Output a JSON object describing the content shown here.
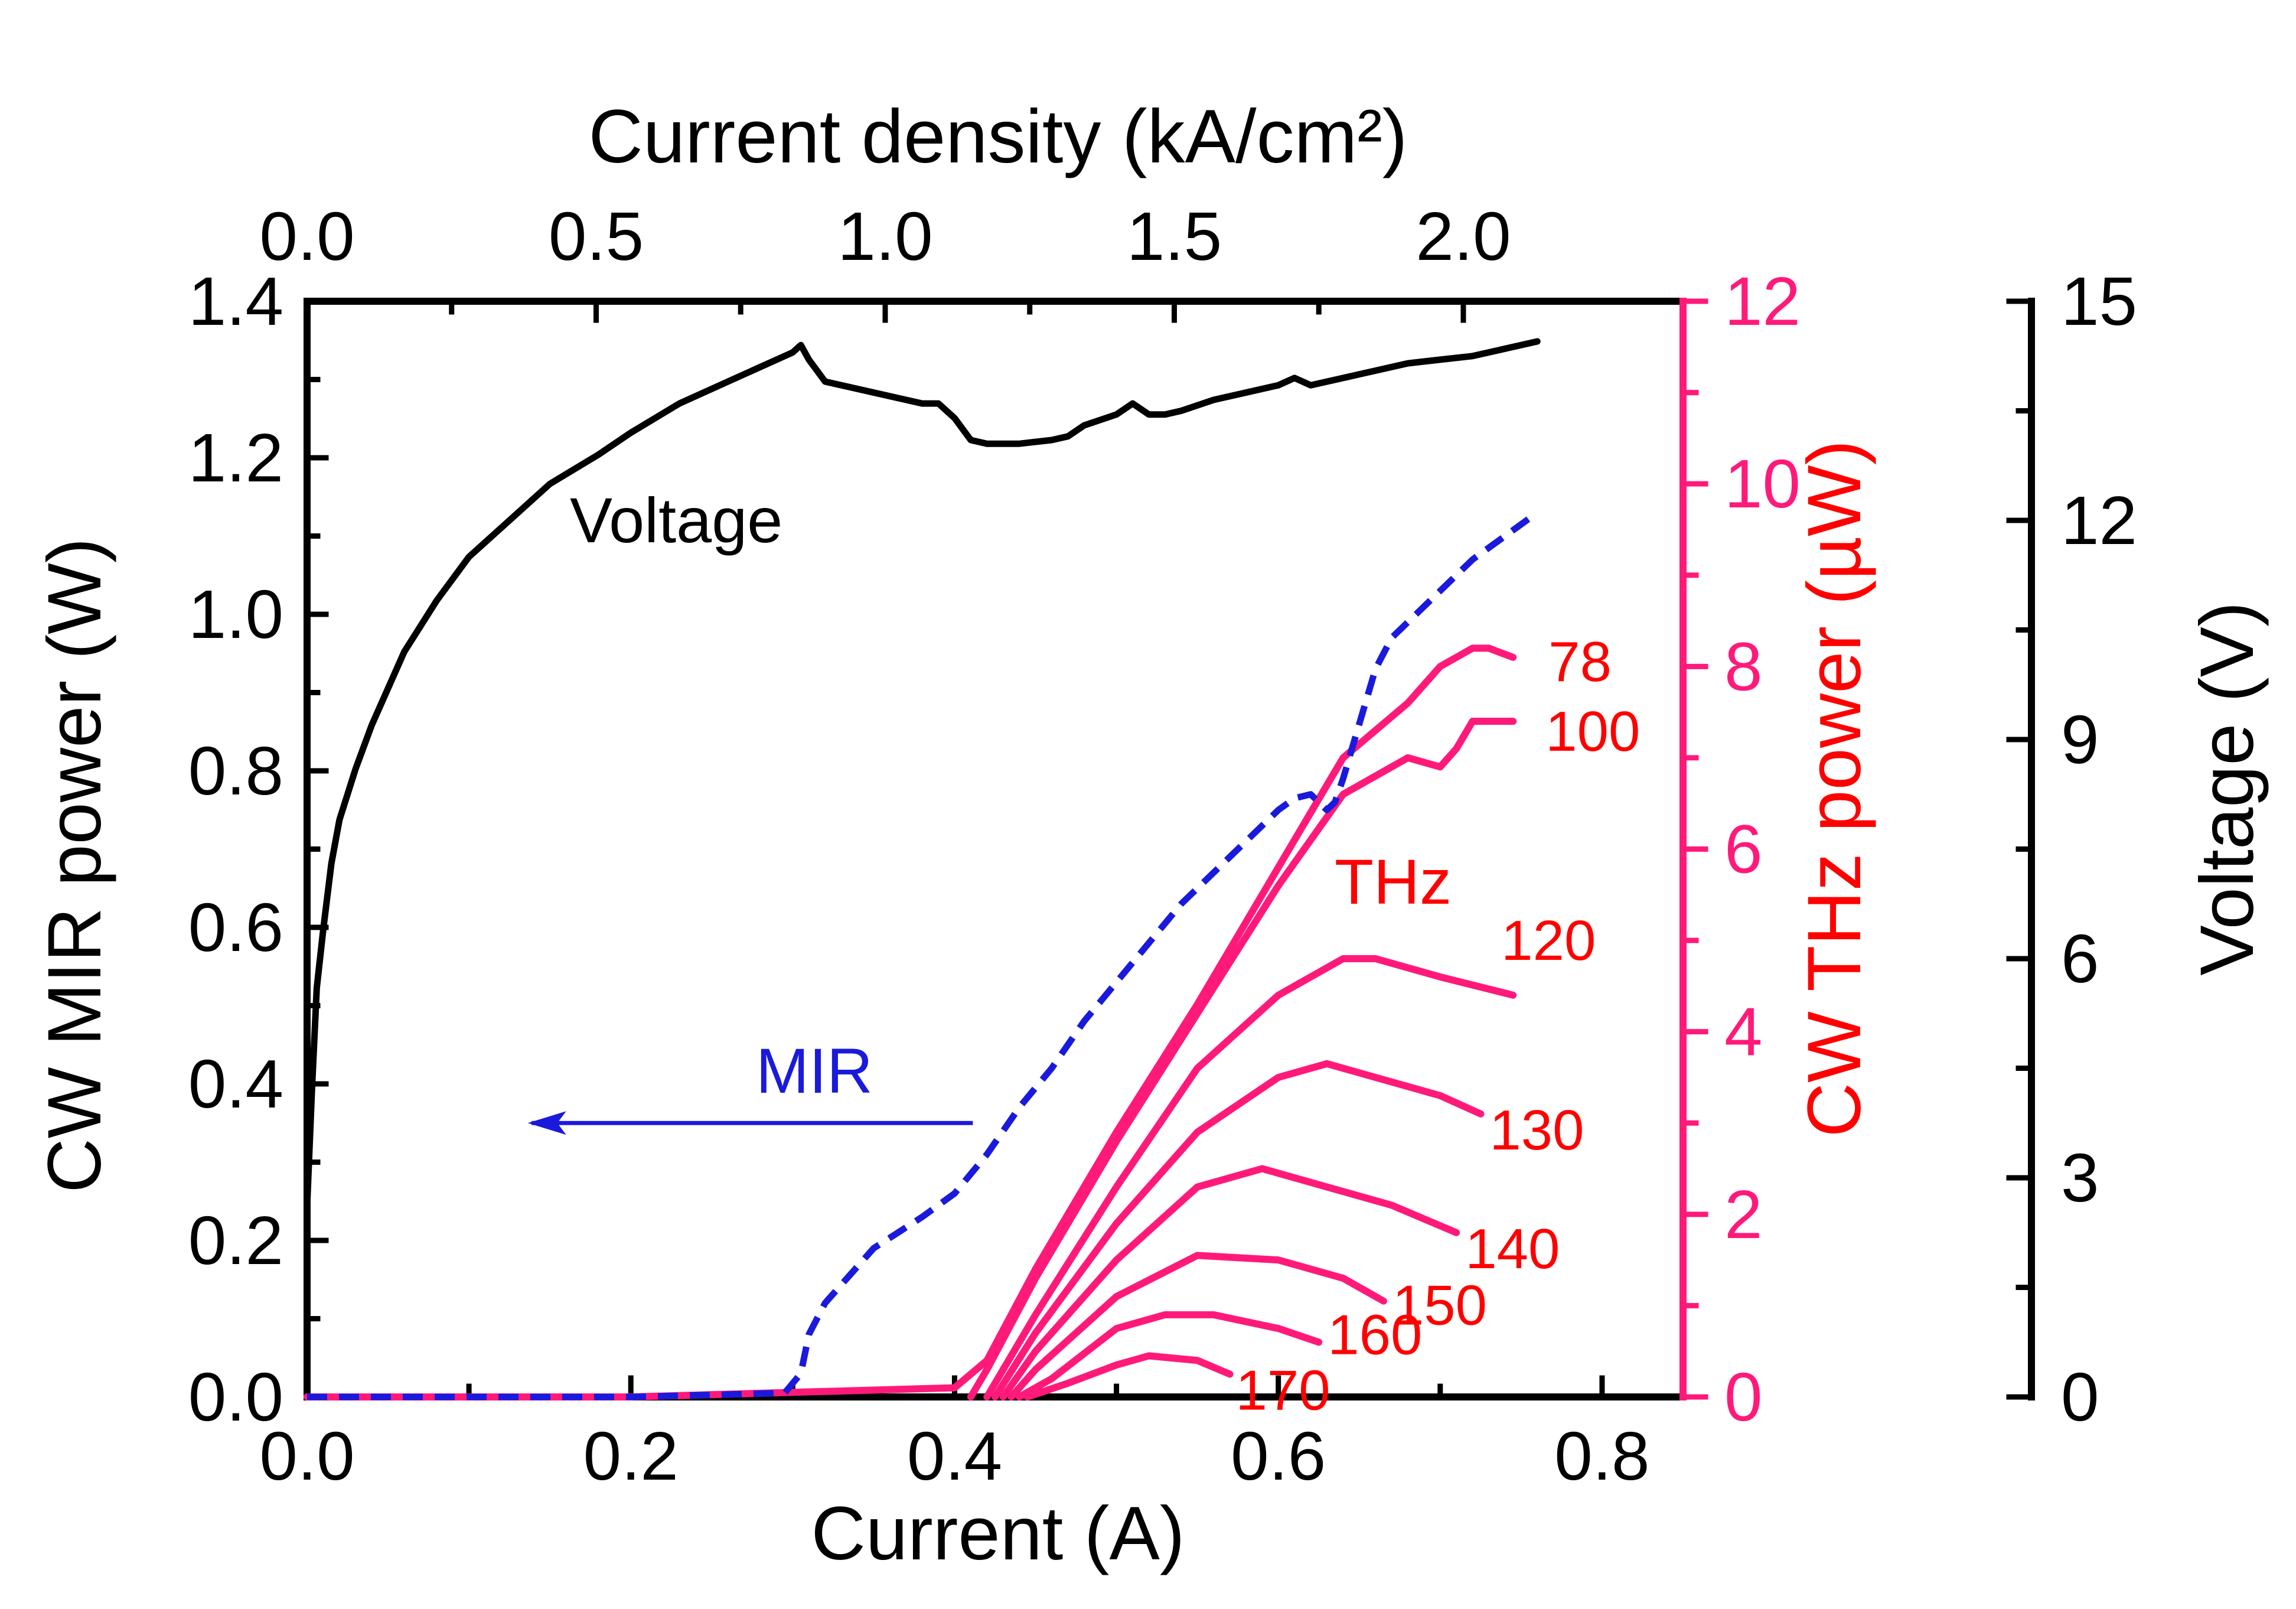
{
  "chart_data": {
    "type": "line",
    "title": "",
    "xlabel": "Current (A)",
    "xlabel_top": "Current density (kA/cm²)",
    "ylabel_left": "CW MIR power (W)",
    "ylabel_right": "CW THz power (µW)",
    "ylabel_far_right": "Voltage (V)",
    "xlim": [
      0.0,
      0.85
    ],
    "ylim_left": [
      0.0,
      1.4
    ],
    "ylim_right": [
      0,
      12
    ],
    "ylim_far_right": [
      0,
      15
    ],
    "x_ticks": [
      "0.0",
      "0.2",
      "0.4",
      "0.6",
      "0.8"
    ],
    "x_top_ticks": [
      "0.0",
      "0.5",
      "1.0",
      "1.5",
      "2.0"
    ],
    "x_top_tick_values": [
      0.0,
      0.5,
      1.0,
      1.5,
      2.0
    ],
    "current_density_per_amp": 2.8,
    "y_left_ticks": [
      "0.0",
      "0.2",
      "0.4",
      "0.6",
      "0.8",
      "1.0",
      "1.2",
      "1.4"
    ],
    "y_right_ticks": [
      "0",
      "2",
      "4",
      "6",
      "8",
      "10",
      "12"
    ],
    "y_far_right_ticks": [
      "0",
      "3",
      "6",
      "9",
      "12",
      "15"
    ],
    "colors": {
      "voltage": "#000000",
      "mir": "#1a1adc",
      "thz": "#ff1a7a",
      "thz_label": "#ff0000",
      "right_axis": "#ff1a7a"
    },
    "annotations": {
      "voltage": "Voltage",
      "mir": "MIR",
      "thz": "THz"
    },
    "voltage_series": {
      "name": "Voltage",
      "axis": "far_right",
      "x": [
        0.0,
        0.003,
        0.006,
        0.01,
        0.015,
        0.02,
        0.03,
        0.04,
        0.06,
        0.08,
        0.1,
        0.12,
        0.15,
        0.18,
        0.2,
        0.23,
        0.26,
        0.28,
        0.3,
        0.305,
        0.31,
        0.32,
        0.34,
        0.36,
        0.38,
        0.39,
        0.4,
        0.41,
        0.42,
        0.44,
        0.46,
        0.47,
        0.48,
        0.5,
        0.51,
        0.52,
        0.53,
        0.54,
        0.56,
        0.58,
        0.6,
        0.61,
        0.62,
        0.64,
        0.66,
        0.68,
        0.7,
        0.72,
        0.74,
        0.76
      ],
      "values": [
        2.6,
        4.2,
        5.6,
        6.4,
        7.3,
        7.9,
        8.6,
        9.2,
        10.2,
        10.9,
        11.5,
        11.9,
        12.5,
        12.9,
        13.2,
        13.6,
        13.9,
        14.1,
        14.3,
        14.4,
        14.2,
        13.9,
        13.8,
        13.7,
        13.6,
        13.6,
        13.4,
        13.1,
        13.05,
        13.05,
        13.1,
        13.15,
        13.3,
        13.45,
        13.6,
        13.45,
        13.45,
        13.5,
        13.65,
        13.75,
        13.85,
        13.95,
        13.85,
        13.95,
        14.05,
        14.15,
        14.2,
        14.25,
        14.35,
        14.45
      ]
    },
    "mir_series": {
      "name": "MIR",
      "axis": "left",
      "x": [
        0.0,
        0.1,
        0.2,
        0.295,
        0.305,
        0.31,
        0.32,
        0.35,
        0.38,
        0.4,
        0.42,
        0.44,
        0.46,
        0.48,
        0.5,
        0.52,
        0.54,
        0.56,
        0.58,
        0.6,
        0.61,
        0.62,
        0.63,
        0.635,
        0.64,
        0.65,
        0.66,
        0.67,
        0.68,
        0.7,
        0.72,
        0.74,
        0.76
      ],
      "values": [
        0.0,
        0.0,
        0.0,
        0.005,
        0.03,
        0.08,
        0.12,
        0.19,
        0.23,
        0.26,
        0.31,
        0.37,
        0.42,
        0.48,
        0.53,
        0.58,
        0.63,
        0.67,
        0.71,
        0.75,
        0.765,
        0.77,
        0.75,
        0.76,
        0.79,
        0.86,
        0.93,
        0.97,
        0.99,
        1.03,
        1.07,
        1.1,
        1.13
      ]
    },
    "thz_series": [
      {
        "name": "78",
        "x": [
          0.0,
          0.2,
          0.4,
          0.42,
          0.45,
          0.5,
          0.55,
          0.6,
          0.64,
          0.68,
          0.7,
          0.72,
          0.73,
          0.745
        ],
        "values": [
          0.0,
          0.0,
          0.1,
          0.4,
          1.4,
          2.9,
          4.3,
          5.8,
          7.0,
          7.6,
          8.0,
          8.2,
          8.2,
          8.1
        ]
      },
      {
        "name": "100",
        "x": [
          0.41,
          0.42,
          0.45,
          0.5,
          0.55,
          0.6,
          0.64,
          0.68,
          0.7,
          0.71,
          0.72,
          0.73,
          0.745
        ],
        "values": [
          0.0,
          0.3,
          1.3,
          2.8,
          4.2,
          5.6,
          6.6,
          7.0,
          6.9,
          7.1,
          7.4,
          7.4,
          7.4
        ]
      },
      {
        "name": "120",
        "x": [
          0.42,
          0.45,
          0.5,
          0.55,
          0.6,
          0.64,
          0.66,
          0.7,
          0.745
        ],
        "values": [
          0.0,
          0.9,
          2.3,
          3.6,
          4.4,
          4.8,
          4.8,
          4.6,
          4.4
        ]
      },
      {
        "name": "130",
        "x": [
          0.425,
          0.45,
          0.5,
          0.55,
          0.6,
          0.63,
          0.66,
          0.7,
          0.725
        ],
        "values": [
          0.0,
          0.7,
          1.9,
          2.9,
          3.5,
          3.65,
          3.5,
          3.3,
          3.1
        ]
      },
      {
        "name": "140",
        "x": [
          0.43,
          0.45,
          0.5,
          0.55,
          0.59,
          0.63,
          0.67,
          0.71
        ],
        "values": [
          0.0,
          0.5,
          1.5,
          2.3,
          2.5,
          2.3,
          2.1,
          1.8
        ]
      },
      {
        "name": "150",
        "x": [
          0.435,
          0.45,
          0.5,
          0.55,
          0.6,
          0.64,
          0.665
        ],
        "values": [
          0.0,
          0.3,
          1.1,
          1.55,
          1.5,
          1.3,
          1.05
        ]
      },
      {
        "name": "160",
        "x": [
          0.44,
          0.46,
          0.5,
          0.53,
          0.56,
          0.6,
          0.625
        ],
        "values": [
          0.0,
          0.2,
          0.75,
          0.9,
          0.9,
          0.75,
          0.6
        ]
      },
      {
        "name": "170",
        "x": [
          0.445,
          0.47,
          0.5,
          0.52,
          0.55,
          0.57
        ],
        "values": [
          0.0,
          0.15,
          0.35,
          0.45,
          0.4,
          0.25
        ]
      }
    ]
  }
}
